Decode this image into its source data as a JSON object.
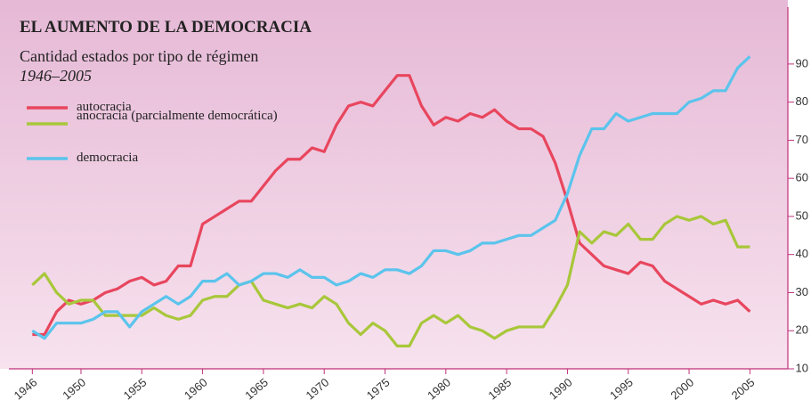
{
  "chart_data": {
    "type": "line",
    "title": "EL AUMENTO DE LA DEMOCRACIA",
    "subtitle": "Cantidad estados por tipo de régimen",
    "period": "1946–2005",
    "x": [
      1946,
      1947,
      1948,
      1949,
      1950,
      1951,
      1952,
      1953,
      1954,
      1955,
      1956,
      1957,
      1958,
      1959,
      1960,
      1961,
      1962,
      1963,
      1964,
      1965,
      1966,
      1967,
      1968,
      1969,
      1970,
      1971,
      1972,
      1973,
      1974,
      1975,
      1976,
      1977,
      1978,
      1979,
      1980,
      1981,
      1982,
      1983,
      1984,
      1985,
      1986,
      1987,
      1988,
      1989,
      1990,
      1991,
      1992,
      1993,
      1994,
      1995,
      1996,
      1997,
      1998,
      1999,
      2000,
      2001,
      2002,
      2003,
      2004,
      2005
    ],
    "series": [
      {
        "name": "autocracia",
        "color": "#e8465e",
        "values": [
          19,
          19,
          25,
          28,
          27,
          28,
          30,
          31,
          33,
          34,
          32,
          33,
          37,
          37,
          48,
          50,
          52,
          54,
          54,
          58,
          62,
          65,
          65,
          68,
          67,
          74,
          79,
          80,
          79,
          83,
          87,
          87,
          79,
          74,
          76,
          75,
          77,
          76,
          78,
          75,
          73,
          73,
          71,
          64,
          54,
          43,
          40,
          37,
          36,
          35,
          38,
          37,
          33,
          31,
          29,
          27,
          28,
          27,
          28,
          25
        ]
      },
      {
        "name": "anocracia (parcialmente democrática)",
        "color": "#a8c73a",
        "values": [
          32,
          35,
          30,
          27,
          28,
          28,
          24,
          24,
          24,
          24,
          26,
          24,
          23,
          24,
          28,
          29,
          29,
          32,
          33,
          28,
          27,
          26,
          27,
          26,
          29,
          27,
          22,
          19,
          22,
          20,
          16,
          16,
          22,
          24,
          22,
          24,
          21,
          20,
          18,
          20,
          21,
          21,
          21,
          26,
          32,
          46,
          43,
          46,
          45,
          48,
          44,
          44,
          48,
          50,
          49,
          50,
          48,
          49,
          42,
          42
        ]
      },
      {
        "name": "democracia",
        "color": "#5bc4ec",
        "values": [
          20,
          18,
          22,
          22,
          22,
          23,
          25,
          25,
          21,
          25,
          27,
          29,
          27,
          29,
          33,
          33,
          35,
          32,
          33,
          35,
          35,
          34,
          36,
          34,
          34,
          32,
          33,
          35,
          34,
          36,
          36,
          35,
          37,
          41,
          41,
          40,
          41,
          43,
          43,
          44,
          45,
          45,
          47,
          49,
          56,
          66,
          73,
          73,
          77,
          75,
          76,
          77,
          77,
          77,
          80,
          81,
          83,
          83,
          89,
          92
        ]
      }
    ],
    "xlim": [
      1944,
      2009
    ],
    "xticks": [
      1946,
      1950,
      1955,
      1960,
      1965,
      1970,
      1975,
      1980,
      1985,
      1990,
      1995,
      2000,
      2005
    ],
    "ylim": [
      10,
      104
    ],
    "yticks": [
      10,
      20,
      30,
      40,
      50,
      60,
      70,
      80,
      90
    ]
  }
}
